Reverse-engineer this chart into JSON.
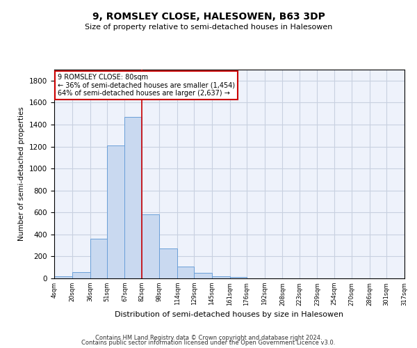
{
  "title": "9, ROMSLEY CLOSE, HALESOWEN, B63 3DP",
  "subtitle": "Size of property relative to semi-detached houses in Halesowen",
  "xlabel": "Distribution of semi-detached houses by size in Halesowen",
  "ylabel": "Number of semi-detached properties",
  "footer_line1": "Contains HM Land Registry data © Crown copyright and database right 2024.",
  "footer_line2": "Contains public sector information licensed under the Open Government Licence v3.0.",
  "annotation_title": "9 ROMSLEY CLOSE: 80sqm",
  "annotation_line1": "← 36% of semi-detached houses are smaller (1,454)",
  "annotation_line2": "64% of semi-detached houses are larger (2,637) →",
  "bar_edges": [
    4,
    20,
    36,
    51,
    67,
    82,
    98,
    114,
    129,
    145,
    161,
    176,
    192,
    208,
    223,
    239,
    254,
    270,
    286,
    301,
    317
  ],
  "bar_labels": [
    "4sqm",
    "20sqm",
    "36sqm",
    "51sqm",
    "67sqm",
    "82sqm",
    "98sqm",
    "114sqm",
    "129sqm",
    "145sqm",
    "161sqm",
    "176sqm",
    "192sqm",
    "208sqm",
    "223sqm",
    "239sqm",
    "254sqm",
    "270sqm",
    "286sqm",
    "301sqm",
    "317sqm"
  ],
  "bar_heights": [
    20,
    60,
    360,
    1210,
    1470,
    580,
    270,
    110,
    50,
    20,
    10,
    0,
    0,
    0,
    0,
    0,
    0,
    0,
    0,
    0
  ],
  "bar_color": "#c9d9f0",
  "bar_edgecolor": "#6a9fd8",
  "vline_x": 82,
  "vline_color": "#cc0000",
  "grid_color": "#c8d0e0",
  "background_color": "#eef2fb",
  "ylim": [
    0,
    1900
  ],
  "yticks": [
    0,
    200,
    400,
    600,
    800,
    1000,
    1200,
    1400,
    1600,
    1800
  ]
}
